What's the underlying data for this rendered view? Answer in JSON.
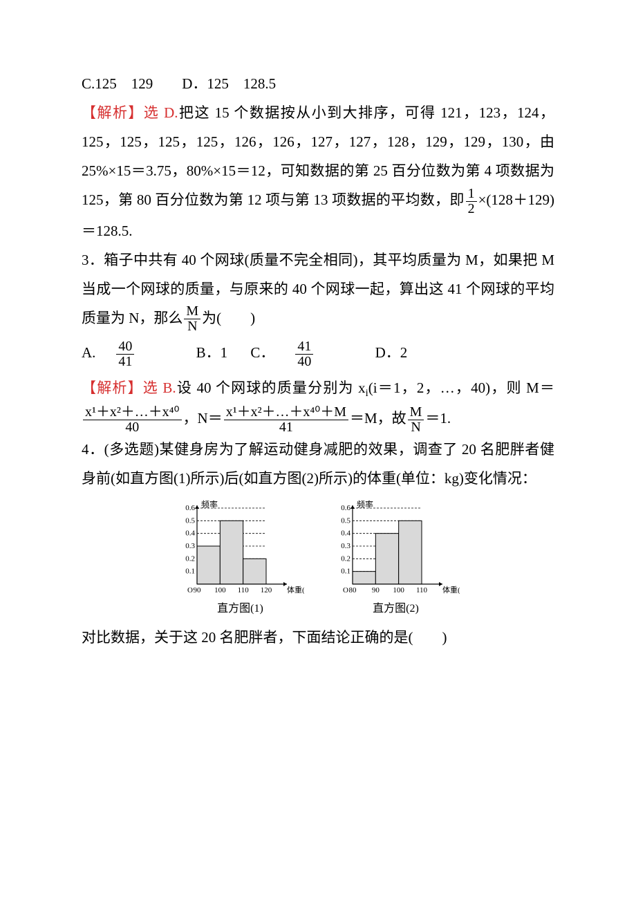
{
  "q2": {
    "options_cd": "C.125　129　　D．125　128.5",
    "analysis_label": "【解析】",
    "analysis_answer": "选 D.",
    "text1": "把这 15 个数据按从小到大排序，可得 121，123，124，125，125，125，125，126，126，127，127，128，129，129，130，由 25%×15＝3.75，80%×15＝12，可知数据的第 25 百分位数为第 4 项数据为 125，第 80 百分位数为第 12 项与第 13 项数据的平均数，即",
    "frac_num": "1",
    "frac_den": "2",
    "text2": "×(128＋129)＝128.5."
  },
  "q3": {
    "stem1": "3．箱子中共有 40 个网球(质量不完全相同)，其平均质量为 M，如果把 M 当成一个网球的质量，与原来的 40 个网球一起，算出这 41 个网球的平均质量为 N，那么",
    "frac_num": "M",
    "frac_den": "N",
    "stem2": "为(　　)",
    "optA_label": "A.",
    "optA_num": "40",
    "optA_den": "41",
    "optB": "B．1",
    "optC_label": "C．",
    "optC_num": "41",
    "optC_den": "40",
    "optD": "D．2",
    "analysis_label": "【解析】",
    "analysis_answer": "选 B.",
    "sol1": "设 40 个网球的质量分别为 x",
    "sol_sub": "i",
    "sol1b": "(i＝1，2，…，40)，则 M＝",
    "fracM_num": "x¹＋x²＋…＋x⁴⁰",
    "fracM_den": "40",
    "sol2": "，N＝",
    "fracN_num": "x¹＋x²＋…＋x⁴⁰＋M",
    "fracN_den": "41",
    "sol3": "＝M，故",
    "fracR_num": "M",
    "fracR_den": "N",
    "sol4": "＝1."
  },
  "q4": {
    "stem": "4．(多选题)某健身房为了解运动健身减肥的效果，调查了 20 名肥胖者健身前(如直方图(1)所示)后(如直方图(2)所示)的体重(单位：kg)变化情况：",
    "tail": "对比数据，关于这 20 名肥胖者，下面结论正确的是(　　)"
  },
  "chart_common": {
    "y_label": "频率",
    "y_ticks": [
      "0.1",
      "0.2",
      "0.3",
      "0.4",
      "0.5",
      "0.6"
    ],
    "grid_color": "#000000",
    "axis_color": "#000000",
    "bar_fill": "#d9d9d9",
    "bar_stroke": "#000000",
    "tick_fontsize": 11,
    "label_fontsize": 12
  },
  "chart1": {
    "x_ticks": [
      "90",
      "100",
      "110",
      "120"
    ],
    "x_label": "体重(kg)",
    "caption": "直方图(1)",
    "bars": [
      {
        "x": "90",
        "h": 0.3
      },
      {
        "x": "100",
        "h": 0.5
      },
      {
        "x": "110",
        "h": 0.2
      }
    ]
  },
  "chart2": {
    "x_ticks": [
      "80",
      "90",
      "100",
      "110"
    ],
    "x_label": "体重(kg)",
    "caption": "直方图(2)",
    "bars": [
      {
        "x": "80",
        "h": 0.1
      },
      {
        "x": "90",
        "h": 0.4
      },
      {
        "x": "100",
        "h": 0.5
      }
    ]
  }
}
